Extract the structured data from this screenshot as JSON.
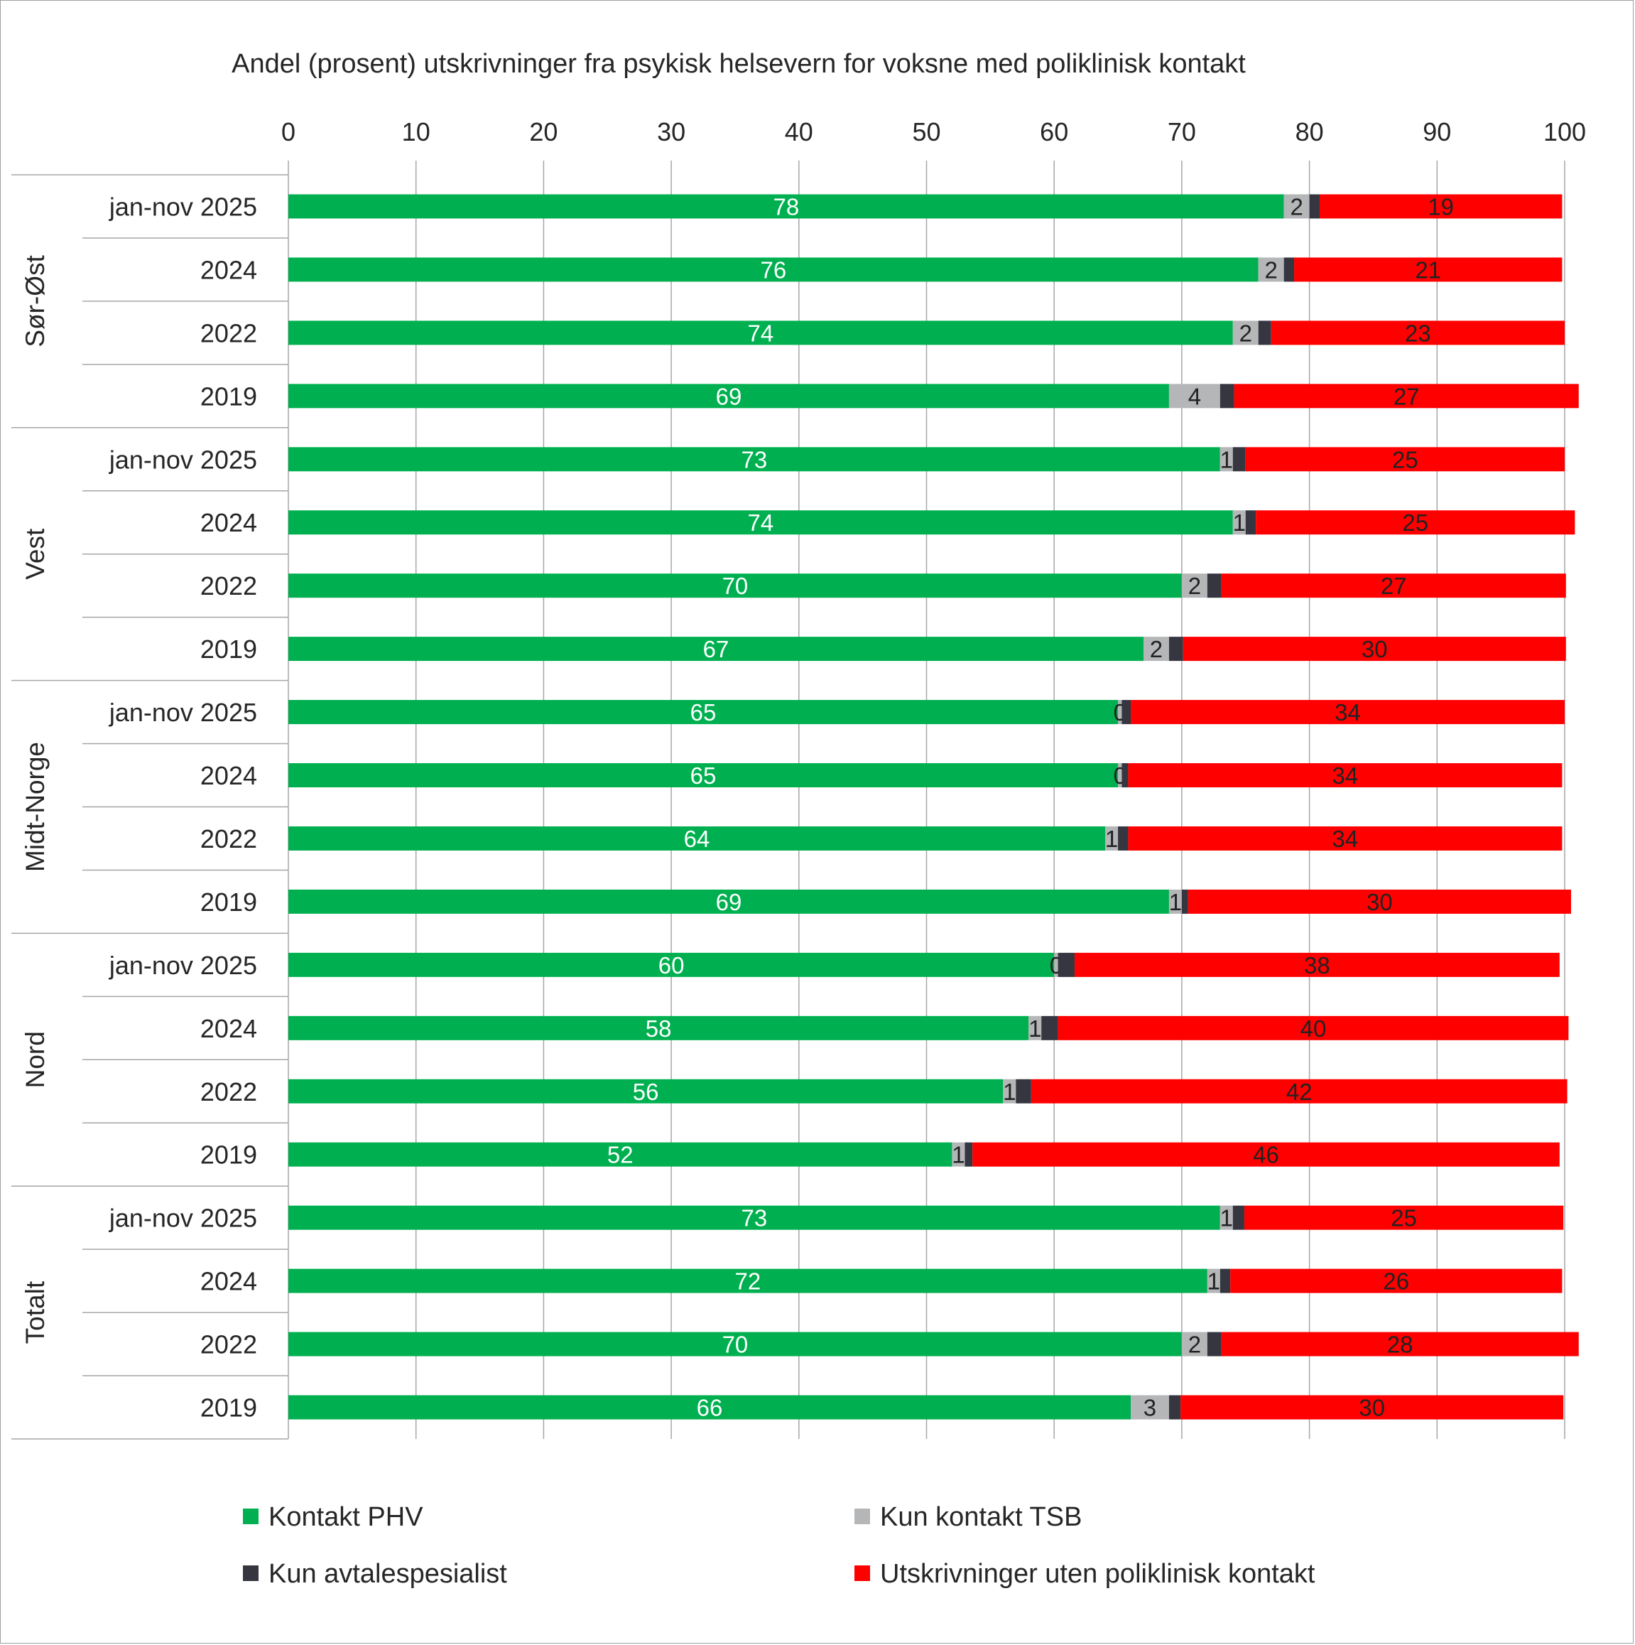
{
  "chart_data": {
    "type": "bar",
    "orientation": "horizontal",
    "stacked": true,
    "title": "Andel (prosent)  utskrivninger fra psykisk helsevern for voksne med poliklinisk kontakt",
    "xlim": [
      0,
      100
    ],
    "x_ticks": [
      "0",
      "10",
      "20",
      "30",
      "40",
      "50",
      "60",
      "70",
      "80",
      "90",
      "100"
    ],
    "x_axis_position": "top",
    "grid": true,
    "legend_position": "bottom",
    "groups": [
      {
        "name": "Sør-Øst",
        "categories": [
          "jan-nov 2025",
          "2024",
          "2022",
          "2019"
        ]
      },
      {
        "name": "Vest",
        "categories": [
          "jan-nov 2025",
          "2024",
          "2022",
          "2019"
        ]
      },
      {
        "name": "Midt-Norge",
        "categories": [
          "jan-nov 2025",
          "2024",
          "2022",
          "2019"
        ]
      },
      {
        "name": "Nord",
        "categories": [
          "jan-nov 2025",
          "2024",
          "2022",
          "2019"
        ]
      },
      {
        "name": "Totalt",
        "categories": [
          "jan-nov 2025",
          "2024",
          "2022",
          "2019"
        ]
      }
    ],
    "series": [
      {
        "name": "Kontakt PHV",
        "color": "#00b050",
        "label_color": "#ffffff",
        "values": [
          78,
          76,
          74,
          69,
          73,
          74,
          70,
          67,
          65,
          65,
          64,
          69,
          60,
          58,
          56,
          52,
          73,
          72,
          70,
          66
        ],
        "labels": [
          "78",
          "76",
          "74",
          "69",
          "73",
          "74",
          "70",
          "67",
          "65",
          "65",
          "64",
          "69",
          "60",
          "58",
          "56",
          "52",
          "73",
          "72",
          "70",
          "66"
        ]
      },
      {
        "name": "Kun kontakt TSB",
        "color": "#b4b6b8",
        "label_color": "#222222",
        "values": [
          2,
          2,
          2,
          4,
          1,
          1,
          2,
          2,
          0.3,
          0.3,
          1,
          1,
          0.3,
          1,
          1,
          1,
          1,
          1,
          2,
          3
        ],
        "labels": [
          "2",
          "2",
          "2",
          "4",
          "1",
          "1",
          "2",
          "2",
          "0",
          "0",
          "1",
          "1",
          "0",
          "1",
          "1",
          "1",
          "1",
          "1",
          "2",
          "3"
        ]
      },
      {
        "name": "Kun avtalespesialist",
        "color": "#353640",
        "label_color": "#222222",
        "values": [
          0.8,
          0.8,
          1,
          1.1,
          1,
          0.8,
          1.1,
          1.1,
          0.7,
          0.5,
          0.8,
          0.5,
          1.3,
          1.3,
          1.2,
          0.6,
          0.9,
          0.8,
          1.1,
          0.9
        ],
        "labels": []
      },
      {
        "name": "Utskrivninger uten poliklinisk kontakt",
        "color": "#ff0000",
        "label_color": "#222222",
        "values": [
          19,
          21,
          23,
          27,
          25,
          25,
          27,
          30,
          34,
          34,
          34,
          30,
          38,
          40,
          42,
          46,
          25,
          26,
          28,
          30
        ],
        "labels": [
          "19",
          "21",
          "23",
          "27",
          "25",
          "25",
          "27",
          "30",
          "34",
          "34",
          "34",
          "30",
          "38",
          "40",
          "42",
          "46",
          "25",
          "26",
          "28",
          "30"
        ]
      }
    ]
  }
}
